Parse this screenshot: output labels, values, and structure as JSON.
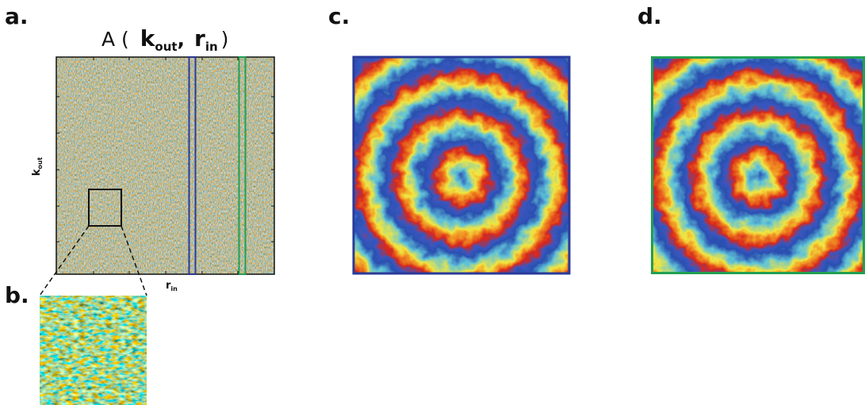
{
  "panels": {
    "a": {
      "label": "a.",
      "title": {
        "prefix": "A (",
        "k": "k",
        "k_sub": "out",
        "comma": ",",
        "r": "r",
        "r_sub": "in",
        "suffix": ")"
      },
      "y_label": {
        "main": "k",
        "sub": "out"
      },
      "x_label": {
        "main": "r",
        "sub": "in"
      }
    },
    "b": {
      "label": "b."
    },
    "c": {
      "label": "c."
    },
    "d": {
      "label": "d."
    }
  }
}
